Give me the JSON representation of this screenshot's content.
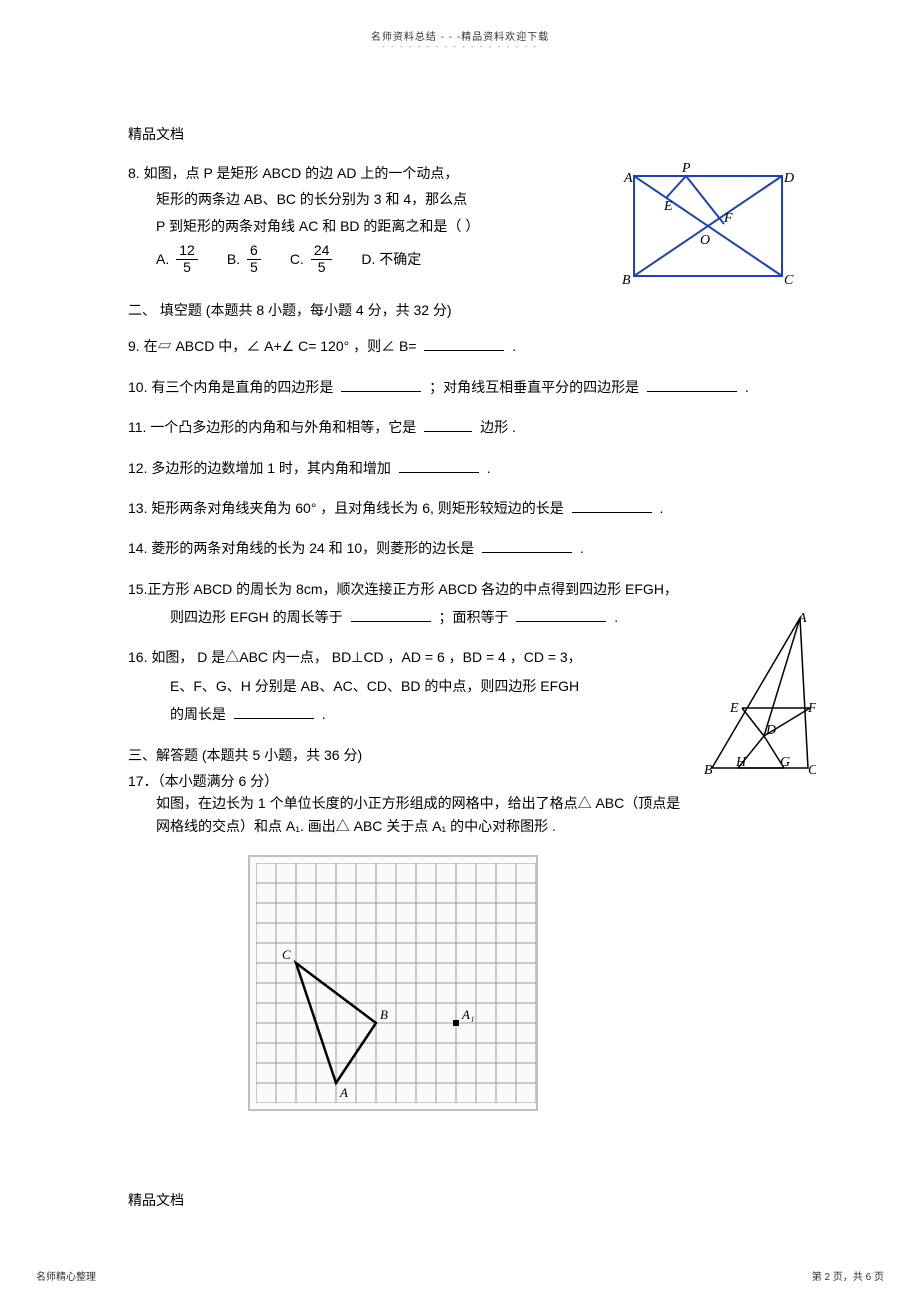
{
  "header": {
    "line1": "名师资料总结  -  -  -精品资料欢迎下载",
    "line2": "- - - - - - - - - - - - - - - - - -"
  },
  "label_top": "精品文档",
  "label_bottom": "精品文档",
  "q8": {
    "l1": "8. 如图，点  P 是矩形  ABCD 的边  AD 上的一个动点，",
    "l2": "矩形的两条边   AB、BC 的长分别为   3 和 4，那么点",
    "l3": "P 到矩形的两条对角线    AC 和 BD 的距离之和是（   ）",
    "optA_prefix": "A.",
    "optA_num": "12",
    "optA_den": "5",
    "optB_prefix": "B.",
    "optB_num": "6",
    "optB_den": "5",
    "optC_prefix": "C.",
    "optC_num": "24",
    "optC_den": "5",
    "optD": "D.  不确定"
  },
  "section2_title": "二、 填空题  (本题共  8 小题，每小题   4 分，共  32 分)",
  "q9": "9.  在▱ ABCD 中，∠ A+∠ C= 120°  ，则∠ B=",
  "q9_tail": " .",
  "q10_a": "10. 有三个内角是直角的四边形是     ",
  "q10_b": "；对角线互相垂直平分的四边形是     ",
  "q10_tail": ".",
  "q11_a": "11. 一个凸多边形的内角和与外角和相等，它是      ",
  "q11_b": "边形  .",
  "q12_a": "12. 多边形的边数增加    1 时，其内角和增加   ",
  "q12_tail": ".",
  "q13_a": "13. 矩形两条对角线夹角为    60°  ，且对角线长为   6, 则矩形较短边的长是   ",
  "q13_tail": ".",
  "q14_a": "14. 菱形的两条对角线的长为     24 和 10，则菱形的边长是   ",
  "q14_tail": ".",
  "q15_a": "15.正方形  ABCD 的周长为  8cm，顺次连接正方形    ABCD 各边的中点得到四边形    EFGH，",
  "q15_b": "则四边形  EFGH 的周长等于  ",
  "q15_c": "；面积等于  ",
  "q15_tail": ".",
  "q16_a": "16. 如图， D 是△ABC 内一点，  BD⊥CD ，AD = 6 ，BD = 4 ，CD = 3，",
  "q16_b": "E、F、G、H 分别是  AB、AC、CD、BD 的中点，则四边形    EFGH",
  "q16_c": "的周长是  ",
  "q16_tail": " .",
  "section3_title": "三、解答题  (本题共  5 小题，共  36 分)",
  "q17_title": " 17．（本小题满分   6 分）",
  "q17_l1": "如图，在边长为    1 个单位长度的小正方形组成的网格中，给出了格点△       ABC（顶点是",
  "q17_l2": "网格线的交点）和点    A₁. 画出△ ABC  关于点  A₁ 的中心对称图形  .",
  "footer": {
    "left": "名师精心整理",
    "right": "第 2 页，共 6 页"
  },
  "fig_rect": {
    "stroke": "#1e3fbf",
    "labels": {
      "A": "A",
      "B": "B",
      "C": "C",
      "D": "D",
      "P": "P",
      "E": "E",
      "F": "F",
      "O": "O"
    }
  },
  "fig_tri": {
    "stroke": "#000000",
    "labels": {
      "A": "A",
      "B": "B",
      "C": "C",
      "D": "D",
      "E": "E",
      "F": "F",
      "G": "G",
      "H": "H"
    }
  },
  "grid": {
    "cols": 14,
    "rows": 12,
    "cell": 20,
    "border_color": "#9a9a9a",
    "line_color": "#9a9a9a",
    "triangle_color": "#000000",
    "A": [
      4,
      11
    ],
    "B": [
      6,
      8
    ],
    "C": [
      2,
      5
    ],
    "A1": [
      10,
      8
    ],
    "labels": {
      "A": "A",
      "B": "B",
      "C": "C",
      "A1": "A₁"
    }
  }
}
